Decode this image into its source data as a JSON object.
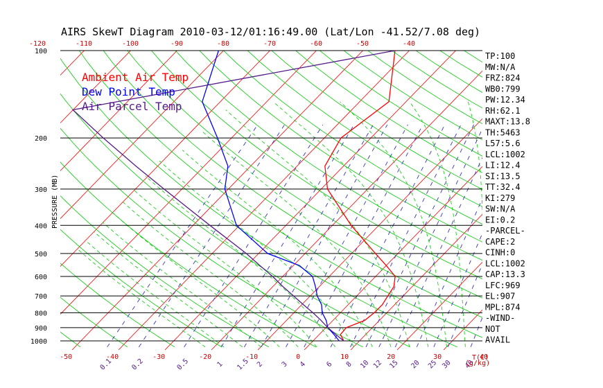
{
  "chart_data": {
    "type": "line",
    "title": "AIRS SkewT Diagram 2010-03-12/01:16:49.00 (Lat/Lon -41.52/7.08 deg)",
    "ylabel": "PRESSURE (MB)",
    "xlabel": "T(C)",
    "mixing_ratio_unit": "(g/kg)",
    "y_scale": "log",
    "ylim": [
      1000,
      100
    ],
    "pressure_ticks": [
      100,
      200,
      300,
      400,
      500,
      600,
      700,
      800,
      900,
      1000
    ],
    "top_temp_ticks": [
      -120,
      -110,
      -100,
      -90,
      -80,
      -70,
      -60,
      -50,
      -40
    ],
    "bottom_temp_ticks": [
      -50,
      -40,
      -30,
      -20,
      -10,
      0,
      10,
      20,
      30,
      40
    ],
    "mixing_ratio_labels": [
      "0.1",
      "0.2",
      "0.5",
      "1",
      "1.5",
      "2",
      "3",
      "4",
      "6",
      "8",
      "10",
      "12",
      "15",
      "20",
      "25",
      "30",
      "40"
    ],
    "legend": [
      {
        "name": "Ambient Air Temp",
        "color": "#ff0000"
      },
      {
        "name": "Dew Point Temp",
        "color": "#0000ff"
      },
      {
        "name": "Air Parcel Temp",
        "color": "#551a8b"
      }
    ],
    "colors": {
      "isotherm": "#ff0000",
      "dry_adiabat": "#00cc00",
      "moist_adiabat": "#00cc00",
      "mixing_ratio": "#3333cc",
      "isobar": "#000000"
    },
    "series": [
      {
        "name": "Ambient Air Temp",
        "color": "#ff0000",
        "points": [
          [
            1000,
            8.5
          ],
          [
            950,
            6.4
          ],
          [
            900,
            6.2
          ],
          [
            850,
            8.6
          ],
          [
            800,
            9.0
          ],
          [
            750,
            9.0
          ],
          [
            700,
            8.3
          ],
          [
            650,
            7.6
          ],
          [
            600,
            5.7
          ],
          [
            550,
            1.4
          ],
          [
            500,
            -3.5
          ],
          [
            400,
            -14.8
          ],
          [
            300,
            -27.7
          ],
          [
            250,
            -33.2
          ],
          [
            200,
            -35.8
          ],
          [
            150,
            -33.3
          ],
          [
            100,
            -43.0
          ]
        ]
      },
      {
        "name": "Dew Point Temp",
        "color": "#0000ff",
        "points": [
          [
            1000,
            7.5
          ],
          [
            950,
            5.0
          ],
          [
            900,
            2.2
          ],
          [
            850,
            0.3
          ],
          [
            800,
            -2.2
          ],
          [
            750,
            -4.1
          ],
          [
            700,
            -6.9
          ],
          [
            650,
            -9.3
          ],
          [
            600,
            -12.1
          ],
          [
            550,
            -17.3
          ],
          [
            500,
            -26.7
          ],
          [
            400,
            -39.5
          ],
          [
            300,
            -49.8
          ],
          [
            250,
            -54.1
          ],
          [
            200,
            -62.4
          ],
          [
            150,
            -73.5
          ],
          [
            100,
            -81.0
          ]
        ]
      },
      {
        "name": "Air Parcel Temp",
        "color": "#551a8b",
        "points": [
          [
            1000,
            8.5
          ],
          [
            950,
            5.4
          ],
          [
            900,
            2.2
          ],
          [
            850,
            -0.8
          ],
          [
            800,
            -4.2
          ],
          [
            750,
            -8.0
          ],
          [
            700,
            -12.0
          ],
          [
            650,
            -16.3
          ],
          [
            600,
            -20.7
          ],
          [
            550,
            -25.8
          ],
          [
            500,
            -31.3
          ],
          [
            400,
            -45.2
          ],
          [
            300,
            -62.9
          ],
          [
            250,
            -73.9
          ],
          [
            200,
            -87.0
          ],
          [
            160,
            -99.6
          ],
          [
            100,
            -43.0
          ]
        ]
      }
    ]
  },
  "stats": [
    "TP:100",
    "MW:N/A",
    "FRZ:824",
    "WB0:799",
    "PW:12.34",
    "RH:62.1",
    "MAXT:13.8",
    "TH:5463",
    "L57:5.6",
    "LCL:1002",
    "LI:12.4",
    "SI:13.5",
    "TT:32.4",
    "KI:279",
    "SW:N/A",
    "EI:0.2",
    "-PARCEL-",
    "CAPE:2",
    "CINH:0",
    "LCL:1002",
    "CAP:13.3",
    "LFC:969",
    "EL:907",
    "MPL:874",
    "-WIND-",
    "NOT",
    "AVAIL"
  ]
}
